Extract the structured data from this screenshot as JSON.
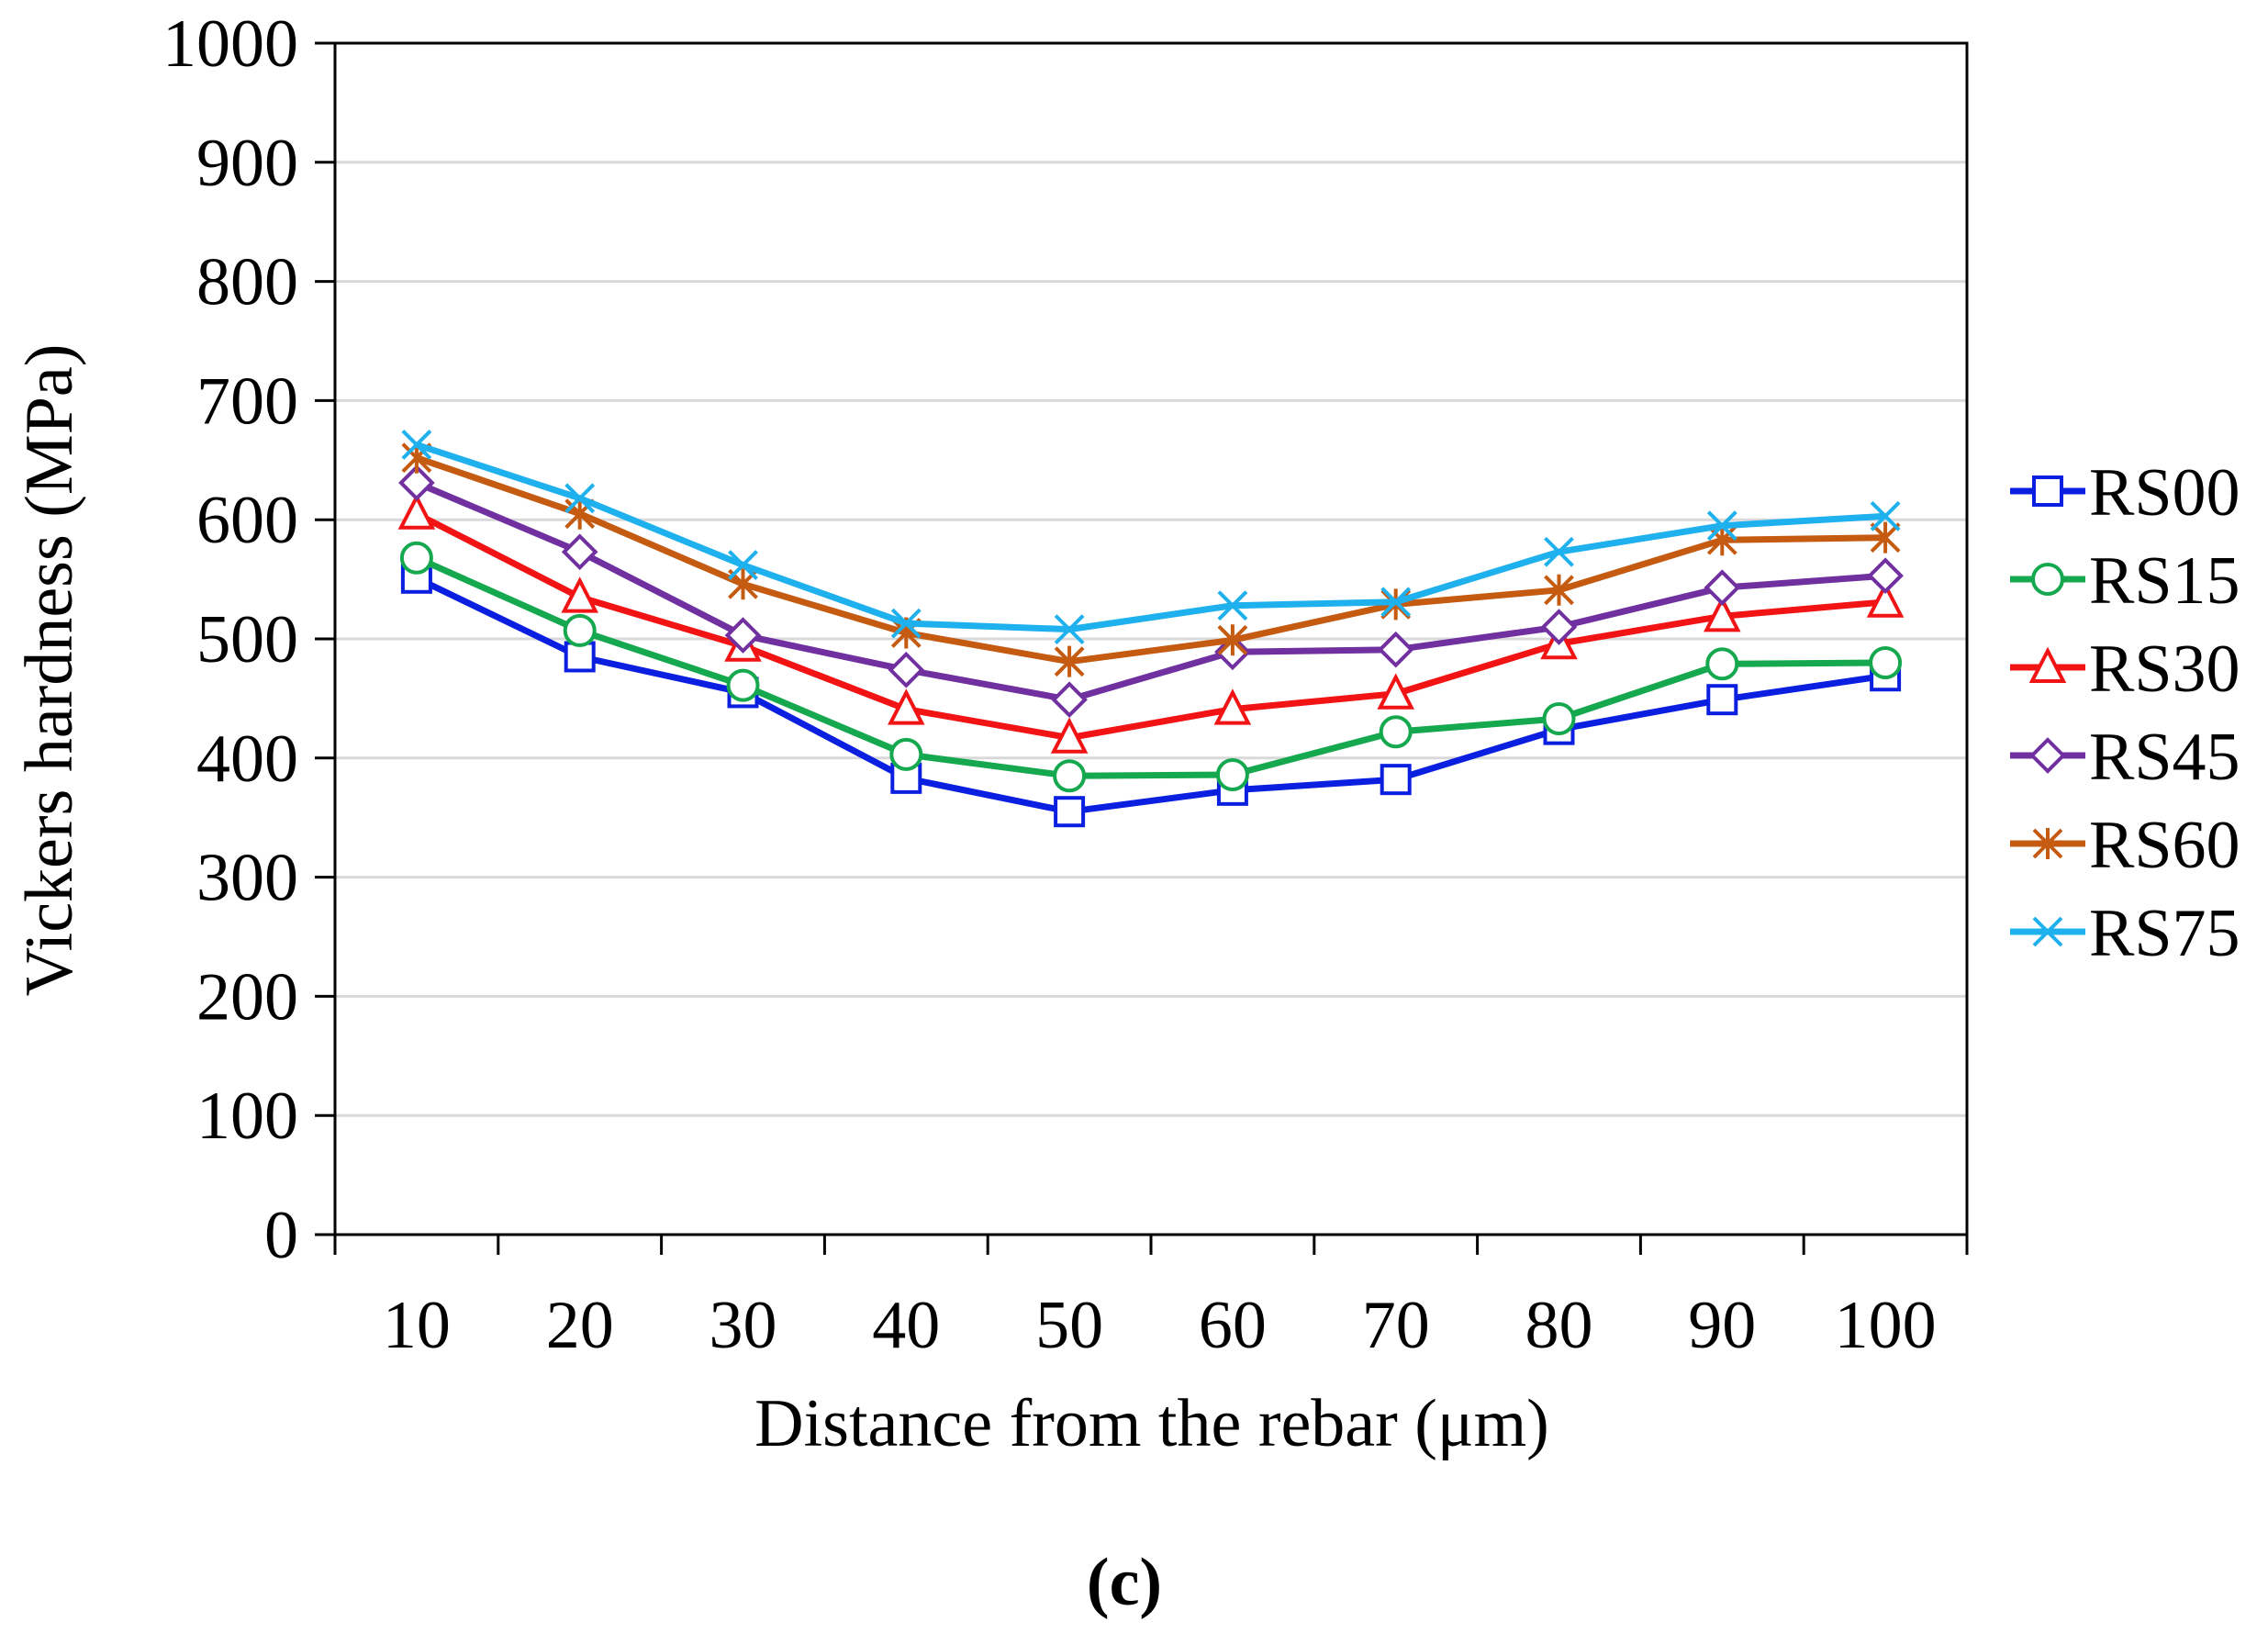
{
  "chart_data": {
    "type": "line",
    "title": "",
    "caption": "(c)",
    "xlabel": "Distance from the rebar (μm)",
    "ylabel": "Vickers hardness (MPa)",
    "categories": [
      "10",
      "20",
      "30",
      "40",
      "50",
      "60",
      "70",
      "80",
      "90",
      "100"
    ],
    "ylim": [
      0,
      1000
    ],
    "yticks": [
      "0",
      "100",
      "200",
      "300",
      "400",
      "500",
      "600",
      "700",
      "800",
      "900",
      "1000"
    ],
    "grid": "horizontal",
    "legend_position": "right",
    "series": [
      {
        "name": "RS00",
        "color": "#0b1fe0",
        "marker": "square",
        "values": [
          551,
          485,
          455,
          383,
          355,
          373,
          382,
          424,
          449,
          469
        ]
      },
      {
        "name": "RS15",
        "color": "#16a84e",
        "marker": "circle",
        "values": [
          568,
          507,
          461,
          403,
          385,
          386,
          422,
          433,
          479,
          480
        ]
      },
      {
        "name": "RS30",
        "color": "#f21414",
        "marker": "triangle",
        "values": [
          605,
          535,
          494,
          441,
          417,
          441,
          454,
          496,
          519,
          531
        ]
      },
      {
        "name": "RS45",
        "color": "#7030a0",
        "marker": "diamond",
        "values": [
          631,
          573,
          503,
          474,
          449,
          489,
          491,
          510,
          543,
          553
        ]
      },
      {
        "name": "RS60",
        "color": "#c55a11",
        "marker": "asterisk",
        "values": [
          652,
          605,
          546,
          505,
          481,
          499,
          529,
          541,
          583,
          585
        ]
      },
      {
        "name": "RS75",
        "color": "#1fb0ee",
        "marker": "x",
        "values": [
          663,
          618,
          562,
          513,
          508,
          528,
          531,
          573,
          595,
          603
        ]
      }
    ]
  }
}
